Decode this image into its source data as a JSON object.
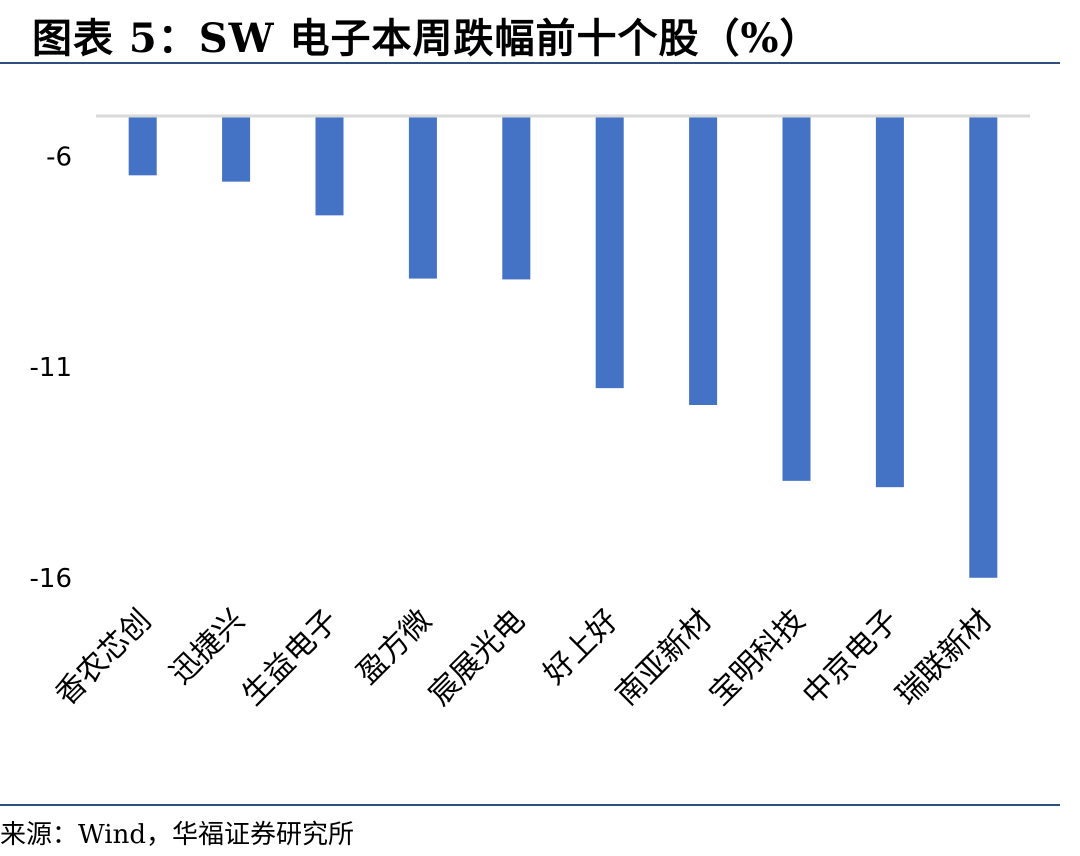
{
  "header": {
    "title": "图表 5：SW 电子本周跌幅前十个股（%）"
  },
  "footer": {
    "source": "来源：Wind，华福证券研究所"
  },
  "chart_data": {
    "type": "bar",
    "title": "图表 5：SW 电子本周跌幅前十个股（%）",
    "xlabel": "",
    "ylabel": "",
    "categories": [
      "香农芯创",
      "迅捷兴",
      "生益电子",
      "盈方微",
      "宸展光电",
      "好上好",
      "南亚新材",
      "宝明科技",
      "中京电子",
      "瑞联新材"
    ],
    "values": [
      -6.45,
      -6.6,
      -7.4,
      -8.9,
      -8.92,
      -11.5,
      -11.9,
      -13.7,
      -13.85,
      -16.0
    ],
    "ylim": [
      -16.1,
      -4.9
    ],
    "yticks": [
      -6,
      -11,
      -16
    ],
    "ytick_labels": [
      "-6",
      "-11",
      "-16"
    ],
    "bar_color": "#4472c4",
    "baseline_color": "#d9d9d9",
    "grid": false,
    "legend": "none"
  }
}
